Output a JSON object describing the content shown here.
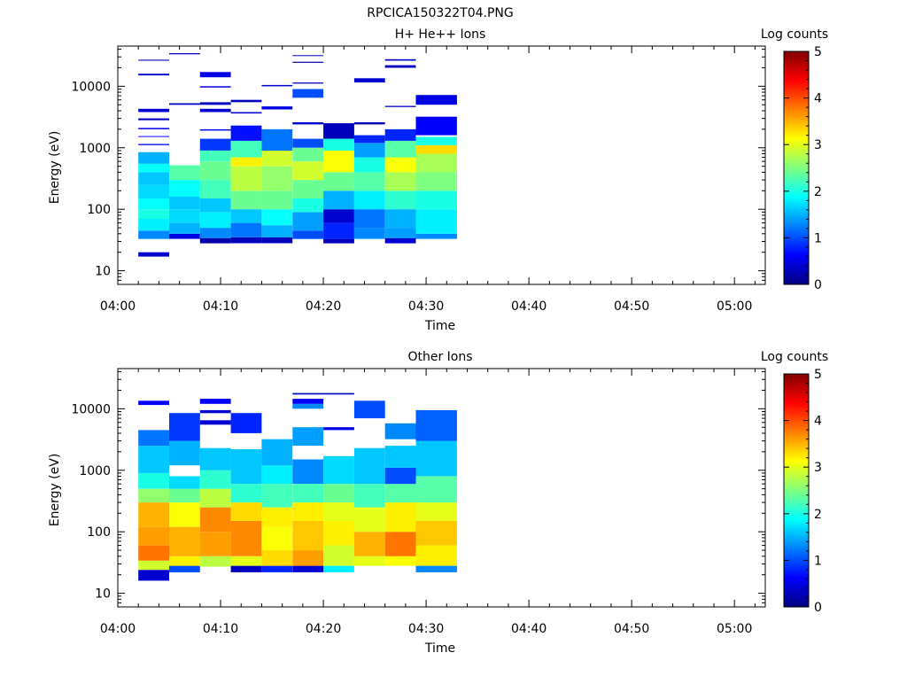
{
  "figure_title": "RPCICA150322T04.PNG",
  "colorbar": {
    "label": "Log counts",
    "ticks": [
      "0",
      "1",
      "2",
      "3",
      "4",
      "5"
    ],
    "stops": [
      "#00007f",
      "#0000ff",
      "#007fff",
      "#00ffff",
      "#7fff7f",
      "#ffff00",
      "#ff7f00",
      "#ff0000",
      "#7f0000"
    ]
  },
  "chart_data": [
    {
      "type": "heatmap",
      "title": "H+ He++ Ions",
      "xlabel": "Time",
      "ylabel": "Energy (eV)",
      "yscale": "log",
      "ylim": [
        6,
        45000
      ],
      "xlim_minutes": [
        0,
        63
      ],
      "x_ticks": [
        "04:00",
        "04:10",
        "04:20",
        "04:30",
        "04:40",
        "04:50",
        "05:00"
      ],
      "x_tick_minutes": [
        0,
        10,
        20,
        30,
        40,
        50,
        60
      ],
      "y_ticks": [
        "10",
        "100",
        "1000",
        "10000"
      ],
      "y_tick_values": [
        10,
        100,
        1000,
        10000
      ],
      "zlim": [
        0,
        5
      ],
      "time_columns": [
        {
          "start": "04:02",
          "end": "04:05",
          "profile": [
            [
              17,
              20,
              0.4
            ],
            [
              33,
              45,
              1.3
            ],
            [
              45,
              70,
              1.8
            ],
            [
              70,
              100,
              2.0
            ],
            [
              100,
              150,
              1.9
            ],
            [
              150,
              250,
              1.7
            ],
            [
              250,
              400,
              1.6
            ],
            [
              400,
              550,
              1.9
            ],
            [
              550,
              850,
              1.5
            ],
            [
              1100,
              1150,
              0.6
            ],
            [
              1500,
              1550,
              0.6
            ],
            [
              2000,
              2100,
              0.5
            ],
            [
              2800,
              3000,
              0.3
            ],
            [
              3800,
              4300,
              0.4
            ],
            [
              15000,
              16000,
              0.4
            ],
            [
              26000,
              27000,
              0.3
            ]
          ]
        },
        {
          "start": "04:05",
          "end": "04:08",
          "profile": [
            [
              33,
              40,
              0.5
            ],
            [
              40,
              60,
              1.5
            ],
            [
              60,
              100,
              1.7
            ],
            [
              100,
              160,
              1.6
            ],
            [
              160,
              300,
              1.9
            ],
            [
              300,
              520,
              2.3
            ],
            [
              5000,
              5300,
              0.3
            ],
            [
              33000,
              34500,
              0.3
            ]
          ]
        },
        {
          "start": "04:08",
          "end": "04:11",
          "profile": [
            [
              28,
              34,
              0.2
            ],
            [
              34,
              50,
              1.3
            ],
            [
              50,
              90,
              1.8
            ],
            [
              90,
              150,
              1.6
            ],
            [
              150,
              300,
              2.2
            ],
            [
              300,
              600,
              2.4
            ],
            [
              600,
              900,
              2.2
            ],
            [
              900,
              1400,
              0.9
            ],
            [
              1900,
              2000,
              0.5
            ],
            [
              3800,
              4300,
              0.4
            ],
            [
              5000,
              5500,
              0.3
            ],
            [
              9500,
              10000,
              0.4
            ],
            [
              14000,
              17000,
              0.5
            ]
          ]
        },
        {
          "start": "04:11",
          "end": "04:14",
          "profile": [
            [
              28,
              35,
              0.3
            ],
            [
              35,
              60,
              1.2
            ],
            [
              60,
              100,
              1.6
            ],
            [
              100,
              200,
              2.4
            ],
            [
              200,
              500,
              2.8
            ],
            [
              500,
              700,
              3.2
            ],
            [
              700,
              1300,
              2.2
            ],
            [
              1300,
              2300,
              0.7
            ],
            [
              3600,
              3800,
              0.4
            ],
            [
              5500,
              6000,
              0.3
            ]
          ]
        },
        {
          "start": "04:14",
          "end": "04:17",
          "profile": [
            [
              28,
              35,
              0.3
            ],
            [
              35,
              55,
              1.5
            ],
            [
              55,
              100,
              1.9
            ],
            [
              100,
              200,
              2.4
            ],
            [
              200,
              500,
              2.6
            ],
            [
              500,
              900,
              2.9
            ],
            [
              900,
              2000,
              1.2
            ],
            [
              4200,
              4700,
              0.5
            ],
            [
              10000,
              10500,
              0.4
            ]
          ]
        },
        {
          "start": "04:17",
          "end": "04:20",
          "profile": [
            [
              33,
              45,
              1.0
            ],
            [
              45,
              90,
              1.4
            ],
            [
              90,
              150,
              2.0
            ],
            [
              150,
              300,
              2.4
            ],
            [
              300,
              600,
              2.9
            ],
            [
              600,
              1000,
              2.4
            ],
            [
              1000,
              1400,
              1.0
            ],
            [
              2400,
              2600,
              0.4
            ],
            [
              6500,
              9000,
              1.0
            ],
            [
              11000,
              11500,
              0.4
            ],
            [
              24000,
              25000,
              0.3
            ],
            [
              31000,
              32000,
              0.3
            ]
          ]
        },
        {
          "start": "04:20",
          "end": "04:23",
          "profile": [
            [
              28,
              33,
              0.3
            ],
            [
              33,
              60,
              0.8
            ],
            [
              60,
              100,
              0.4
            ],
            [
              100,
              200,
              1.5
            ],
            [
              200,
              400,
              2.4
            ],
            [
              400,
              900,
              3.1
            ],
            [
              900,
              1400,
              2.0
            ],
            [
              1400,
              2500,
              0.3
            ]
          ]
        },
        {
          "start": "04:23",
          "end": "04:26",
          "profile": [
            [
              33,
              50,
              1.3
            ],
            [
              50,
              100,
              1.2
            ],
            [
              100,
              200,
              1.8
            ],
            [
              200,
              400,
              2.3
            ],
            [
              400,
              700,
              2.0
            ],
            [
              700,
              1200,
              1.4
            ],
            [
              1200,
              1600,
              0.8
            ],
            [
              2400,
              2600,
              0.3
            ],
            [
              11500,
              13500,
              0.4
            ]
          ]
        },
        {
          "start": "04:26",
          "end": "04:29",
          "profile": [
            [
              28,
              34,
              0.4
            ],
            [
              34,
              50,
              1.4
            ],
            [
              50,
              100,
              1.5
            ],
            [
              100,
              200,
              2.1
            ],
            [
              200,
              400,
              2.7
            ],
            [
              400,
              700,
              3.1
            ],
            [
              700,
              1300,
              2.3
            ],
            [
              1300,
              2000,
              0.8
            ],
            [
              4600,
              4800,
              0.4
            ],
            [
              20000,
              22000,
              0.3
            ],
            [
              26000,
              27500,
              0.4
            ]
          ]
        },
        {
          "start": "04:29",
          "end": "04:33",
          "profile": [
            [
              33,
              40,
              1.3
            ],
            [
              40,
              100,
              1.8
            ],
            [
              100,
              200,
              2.0
            ],
            [
              200,
              400,
              2.5
            ],
            [
              400,
              800,
              2.7
            ],
            [
              800,
              1100,
              3.3
            ],
            [
              1100,
              1500,
              2.0
            ],
            [
              1600,
              3200,
              0.6
            ],
            [
              5000,
              7200,
              0.5
            ]
          ]
        }
      ]
    },
    {
      "type": "heatmap",
      "title": "Other Ions",
      "xlabel": "Time",
      "ylabel": "Energy (eV)",
      "yscale": "log",
      "ylim": [
        6,
        45000
      ],
      "xlim_minutes": [
        0,
        63
      ],
      "x_ticks": [
        "04:00",
        "04:10",
        "04:20",
        "04:30",
        "04:40",
        "04:50",
        "05:00"
      ],
      "x_tick_minutes": [
        0,
        10,
        20,
        30,
        40,
        50,
        60
      ],
      "y_ticks": [
        "10",
        "100",
        "1000",
        "10000"
      ],
      "y_tick_values": [
        10,
        100,
        1000,
        10000
      ],
      "zlim": [
        0,
        5
      ],
      "time_columns": [
        {
          "start": "04:02",
          "end": "04:05",
          "profile": [
            [
              16,
              24,
              0.4
            ],
            [
              24,
              34,
              2.9
            ],
            [
              34,
              60,
              3.8
            ],
            [
              60,
              120,
              3.6
            ],
            [
              120,
              300,
              3.5
            ],
            [
              300,
              500,
              2.6
            ],
            [
              500,
              900,
              2.0
            ],
            [
              900,
              2500,
              1.6
            ],
            [
              2500,
              4500,
              1.2
            ],
            [
              11500,
              13500,
              0.6
            ]
          ]
        },
        {
          "start": "04:05",
          "end": "04:08",
          "profile": [
            [
              22,
              28,
              1.0
            ],
            [
              28,
              40,
              3.2
            ],
            [
              40,
              120,
              3.5
            ],
            [
              120,
              300,
              3.1
            ],
            [
              300,
              500,
              2.4
            ],
            [
              500,
              800,
              1.7
            ],
            [
              1200,
              3000,
              1.5
            ],
            [
              3000,
              8500,
              0.9
            ]
          ]
        },
        {
          "start": "04:08",
          "end": "04:11",
          "profile": [
            [
              27,
              40,
              2.8
            ],
            [
              40,
              100,
              3.6
            ],
            [
              100,
              250,
              3.7
            ],
            [
              250,
              500,
              2.8
            ],
            [
              500,
              1000,
              2.1
            ],
            [
              1000,
              2300,
              1.6
            ],
            [
              5500,
              6500,
              0.4
            ],
            [
              8500,
              9500,
              0.4
            ],
            [
              12000,
              14500,
              0.6
            ]
          ]
        },
        {
          "start": "04:11",
          "end": "04:14",
          "profile": [
            [
              22,
              28,
              0.3
            ],
            [
              28,
              40,
              3.0
            ],
            [
              40,
              150,
              3.7
            ],
            [
              150,
              300,
              3.3
            ],
            [
              300,
              600,
              2.1
            ],
            [
              600,
              2200,
              1.6
            ],
            [
              4000,
              8500,
              0.8
            ]
          ]
        },
        {
          "start": "04:14",
          "end": "04:17",
          "profile": [
            [
              22,
              28,
              0.8
            ],
            [
              28,
              50,
              3.3
            ],
            [
              50,
              120,
              3.1
            ],
            [
              120,
              250,
              3.2
            ],
            [
              250,
              600,
              2.2
            ],
            [
              600,
              1200,
              1.8
            ],
            [
              1200,
              3200,
              1.5
            ]
          ]
        },
        {
          "start": "04:17",
          "end": "04:20",
          "profile": [
            [
              22,
              28,
              0.4
            ],
            [
              28,
              50,
              3.6
            ],
            [
              50,
              150,
              3.4
            ],
            [
              150,
              300,
              3.2
            ],
            [
              300,
              600,
              2.2
            ],
            [
              600,
              1500,
              1.3
            ],
            [
              2500,
              5000,
              1.4
            ],
            [
              10000,
              12000,
              1.3
            ],
            [
              12000,
              14500,
              0.6
            ],
            [
              17000,
              18000,
              0.4
            ]
          ]
        },
        {
          "start": "04:20",
          "end": "04:23",
          "profile": [
            [
              22,
              28,
              1.8
            ],
            [
              28,
              60,
              2.9
            ],
            [
              60,
              150,
              3.2
            ],
            [
              150,
              300,
              3.0
            ],
            [
              300,
              600,
              2.4
            ],
            [
              600,
              1700,
              1.7
            ],
            [
              4500,
              5000,
              0.5
            ],
            [
              17000,
              18000,
              0.4
            ]
          ]
        },
        {
          "start": "04:23",
          "end": "04:26",
          "profile": [
            [
              28,
              40,
              3.0
            ],
            [
              40,
              100,
              3.5
            ],
            [
              100,
              250,
              3.0
            ],
            [
              250,
              600,
              2.2
            ],
            [
              600,
              2300,
              1.6
            ],
            [
              7000,
              13500,
              1.0
            ]
          ]
        },
        {
          "start": "04:26",
          "end": "04:29",
          "profile": [
            [
              28,
              40,
              3.1
            ],
            [
              40,
              100,
              3.8
            ],
            [
              100,
              300,
              3.2
            ],
            [
              300,
              600,
              2.3
            ],
            [
              600,
              1100,
              1.0
            ],
            [
              1100,
              2500,
              1.6
            ],
            [
              3200,
              5800,
              1.3
            ]
          ]
        },
        {
          "start": "04:29",
          "end": "04:33",
          "profile": [
            [
              22,
              28,
              1.3
            ],
            [
              28,
              60,
              3.2
            ],
            [
              60,
              150,
              3.4
            ],
            [
              150,
              300,
              3.0
            ],
            [
              300,
              800,
              2.3
            ],
            [
              800,
              3000,
              1.6
            ],
            [
              3000,
              9500,
              1.1
            ]
          ]
        }
      ]
    }
  ]
}
